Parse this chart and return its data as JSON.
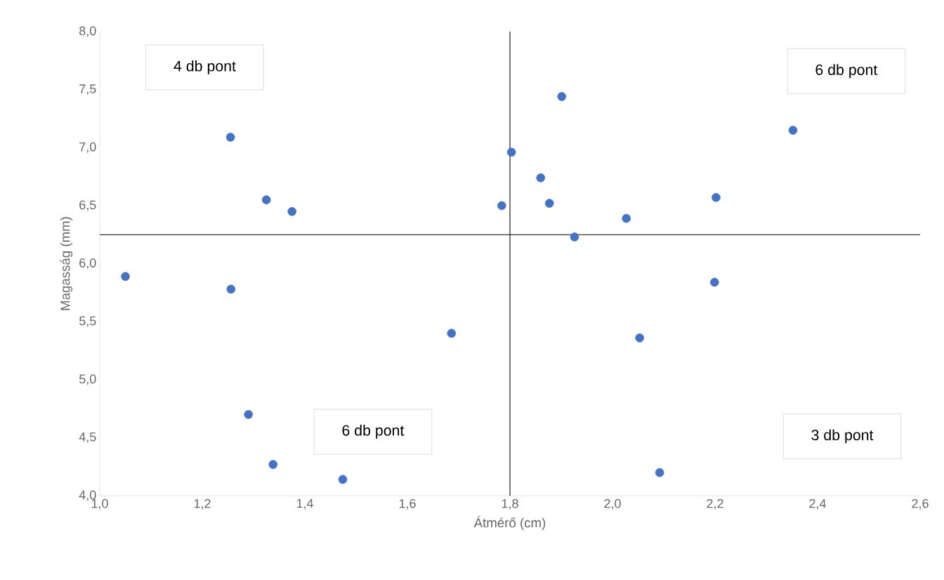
{
  "chart_data": {
    "type": "scatter",
    "xlabel": "Átmérő (cm)",
    "ylabel": "Magasság (mm)",
    "color": "#4472c4",
    "marker": "circle",
    "grid": false,
    "x": [
      1.255,
      1.325,
      1.375,
      1.05,
      1.256,
      1.29,
      1.338,
      1.474,
      1.686,
      1.784,
      1.803,
      1.86,
      1.877,
      1.901,
      1.926,
      2.027,
      2.202,
      2.352,
      2.199,
      2.053,
      2.092
    ],
    "values": [
      7.09,
      6.55,
      6.45,
      5.89,
      5.78,
      4.7,
      4.27,
      4.14,
      5.4,
      6.5,
      6.96,
      6.74,
      6.52,
      7.44,
      6.23,
      6.39,
      6.57,
      7.15,
      5.84,
      5.36,
      4.2
    ],
    "xlim": [
      1.0,
      2.6
    ],
    "ylim": [
      4.0,
      8.0
    ],
    "xticks": [
      {
        "value": 1.0,
        "label": "1,0"
      },
      {
        "value": 1.2,
        "label": "1,2"
      },
      {
        "value": 1.4,
        "label": "1,4"
      },
      {
        "value": 1.6,
        "label": "1,6"
      },
      {
        "value": 1.8,
        "label": "1,8"
      },
      {
        "value": 2.0,
        "label": "2,0"
      },
      {
        "value": 2.2,
        "label": "2,2"
      },
      {
        "value": 2.4,
        "label": "2,4"
      },
      {
        "value": 2.6,
        "label": "2,6"
      }
    ],
    "yticks": [
      {
        "value": 4.0,
        "label": "4,0"
      },
      {
        "value": 4.5,
        "label": "4,5"
      },
      {
        "value": 5.0,
        "label": "5,0"
      },
      {
        "value": 5.5,
        "label": "5,5"
      },
      {
        "value": 6.0,
        "label": "6,0"
      },
      {
        "value": 6.5,
        "label": "6,5"
      },
      {
        "value": 7.0,
        "label": "7,0"
      },
      {
        "value": 7.5,
        "label": "7,5"
      },
      {
        "value": 8.0,
        "label": "8,0"
      }
    ],
    "ref_lines": [
      {
        "axis": "x",
        "value": 1.8,
        "color": "#000000"
      },
      {
        "axis": "y",
        "value": 6.25,
        "color": "#000000"
      }
    ],
    "annotations": [
      "4 db pont",
      "6 db pont",
      "6 db pont",
      "3 db pont"
    ]
  }
}
